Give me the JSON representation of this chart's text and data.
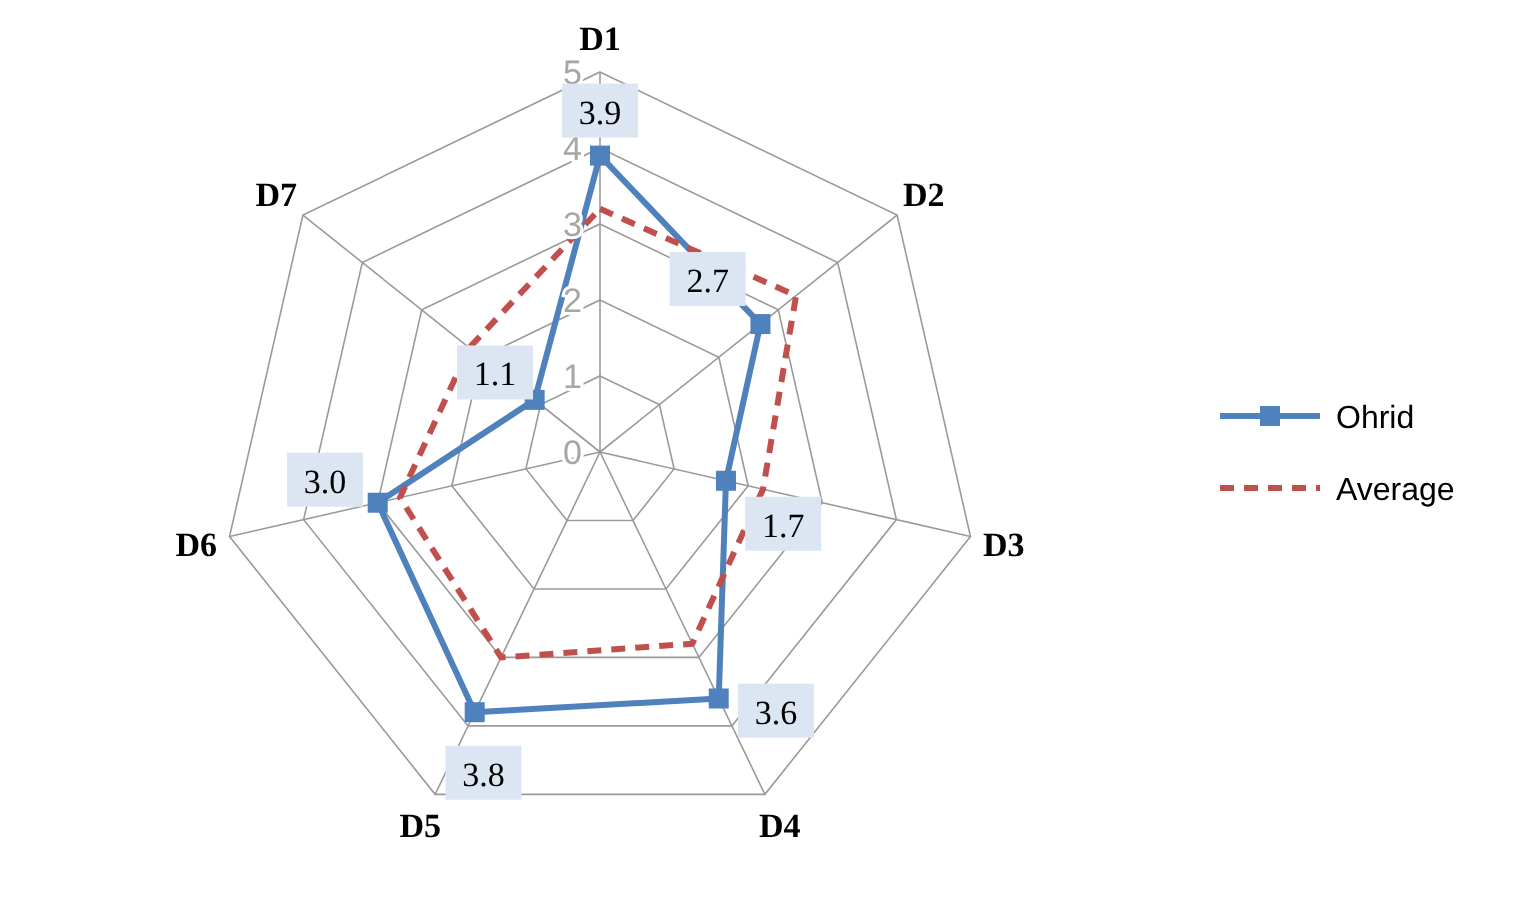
{
  "chart_data": {
    "type": "radar",
    "categories": [
      "D1",
      "D2",
      "D3",
      "D4",
      "D5",
      "D6",
      "D7"
    ],
    "ylim": [
      0,
      5
    ],
    "yticks": [
      0,
      1,
      2,
      3,
      4,
      5
    ],
    "grid": true,
    "legend": "right",
    "series": [
      {
        "name": "Ohrid",
        "color": "#4f81bd",
        "marker": "square",
        "line_style": "solid",
        "values": [
          3.9,
          2.7,
          1.7,
          3.6,
          3.8,
          3.0,
          1.1
        ],
        "value_labels": [
          "3.9",
          "2.7",
          "1.7",
          "3.6",
          "3.8",
          "3.0",
          "1.1"
        ]
      },
      {
        "name": "Average",
        "color": "#c0504d",
        "marker": "none",
        "line_style": "dashed",
        "values": [
          3.2,
          3.3,
          2.2,
          2.8,
          3.0,
          2.7,
          2.2
        ]
      }
    ]
  }
}
